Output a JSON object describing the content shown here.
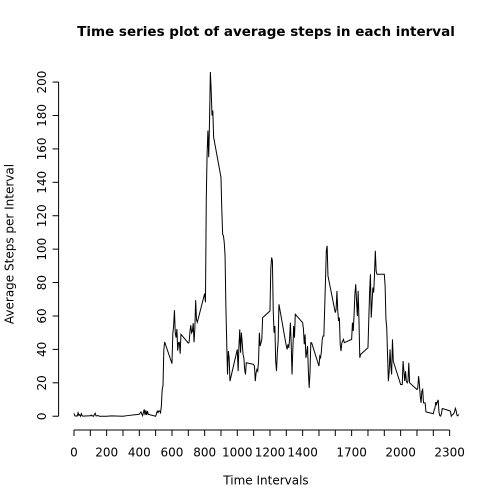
{
  "chart_data": {
    "type": "line",
    "title": "Time series plot of average steps in each interval",
    "xlabel": "Time Intervals",
    "ylabel": "Average Steps per Interval",
    "color": "#000000",
    "x": [
      0,
      5,
      10,
      15,
      20,
      25,
      30,
      35,
      40,
      45,
      50,
      55,
      100,
      105,
      110,
      115,
      120,
      125,
      130,
      135,
      140,
      145,
      150,
      155,
      200,
      230,
      300,
      330,
      400,
      410,
      420,
      430,
      435,
      440,
      445,
      450,
      455,
      500,
      505,
      510,
      515,
      520,
      525,
      530,
      535,
      540,
      545,
      550,
      555,
      600,
      605,
      610,
      615,
      620,
      625,
      630,
      635,
      640,
      645,
      650,
      655,
      700,
      705,
      710,
      715,
      720,
      725,
      730,
      735,
      740,
      745,
      750,
      755,
      800,
      805,
      810,
      815,
      820,
      825,
      830,
      835,
      840,
      845,
      850,
      855,
      900,
      905,
      910,
      915,
      920,
      925,
      930,
      935,
      940,
      945,
      950,
      955,
      1000,
      1005,
      1010,
      1015,
      1020,
      1025,
      1030,
      1035,
      1040,
      1045,
      1050,
      1055,
      1100,
      1105,
      1110,
      1115,
      1120,
      1125,
      1130,
      1135,
      1140,
      1145,
      1150,
      1155,
      1200,
      1205,
      1210,
      1215,
      1220,
      1225,
      1230,
      1235,
      1240,
      1245,
      1250,
      1255,
      1300,
      1305,
      1310,
      1315,
      1320,
      1325,
      1330,
      1335,
      1340,
      1345,
      1350,
      1355,
      1400,
      1405,
      1410,
      1415,
      1420,
      1425,
      1430,
      1435,
      1440,
      1445,
      1450,
      1455,
      1500,
      1505,
      1510,
      1515,
      1520,
      1525,
      1530,
      1535,
      1540,
      1545,
      1550,
      1555,
      1600,
      1605,
      1610,
      1615,
      1620,
      1625,
      1630,
      1635,
      1640,
      1645,
      1650,
      1655,
      1700,
      1705,
      1710,
      1715,
      1720,
      1725,
      1730,
      1735,
      1740,
      1745,
      1750,
      1755,
      1800,
      1805,
      1810,
      1815,
      1820,
      1825,
      1830,
      1835,
      1840,
      1845,
      1850,
      1855,
      1900,
      1905,
      1910,
      1915,
      1920,
      1925,
      1930,
      1935,
      1940,
      1945,
      1950,
      1955,
      2000,
      2005,
      2010,
      2015,
      2020,
      2025,
      2030,
      2035,
      2040,
      2045,
      2050,
      2055,
      2100,
      2105,
      2110,
      2115,
      2120,
      2125,
      2130,
      2135,
      2140,
      2145,
      2150,
      2155,
      2200,
      2205,
      2210,
      2215,
      2220,
      2225,
      2230,
      2235,
      2240,
      2245,
      2250,
      2255,
      2300,
      2305,
      2310,
      2315,
      2320,
      2325,
      2330,
      2335,
      2340,
      2345,
      2350,
      2355
    ],
    "values": [
      1.7,
      0.3,
      0.1,
      0.2,
      0.1,
      2.1,
      0.5,
      0.9,
      0,
      1.5,
      0.3,
      0.1,
      0.3,
      0.7,
      0.2,
      0.3,
      0,
      1.1,
      1.8,
      0.2,
      0.2,
      0.4,
      0.3,
      0,
      0,
      0.2,
      0,
      0.4,
      1.2,
      2.6,
      0.3,
      4.1,
      0.7,
      3.5,
      0.8,
      3.1,
      1.1,
      0,
      1.6,
      3,
      2.2,
      3.3,
      3,
      2.1,
      6.1,
      16,
      18.3,
      39.5,
      44.5,
      31.5,
      49.3,
      53.8,
      63.5,
      50,
      47.1,
      52.2,
      39.3,
      44,
      44.2,
      37.4,
      49,
      43.8,
      44.4,
      50.5,
      54.5,
      49.9,
      50.9,
      55.7,
      44.3,
      52.3,
      69.5,
      57.8,
      56.2,
      73.4,
      68.2,
      130,
      157,
      171,
      155,
      177,
      206,
      195,
      180,
      183,
      167,
      143,
      124,
      109,
      108,
      104,
      96,
      66,
      45,
      25,
      39,
      35,
      21,
      40,
      27,
      42,
      52,
      38,
      50,
      44,
      37,
      35,
      28,
      25,
      32,
      31,
      30,
      21,
      26,
      28,
      27,
      33,
      50,
      42,
      44,
      46,
      59,
      63,
      88,
      95,
      93,
      63,
      50,
      54,
      33,
      27,
      38,
      45,
      67,
      42,
      40,
      43,
      41,
      46,
      56,
      43,
      25,
      40,
      54,
      47,
      61,
      56,
      52,
      43,
      49,
      35,
      38,
      42,
      27,
      17,
      26,
      44,
      44,
      30,
      36,
      35,
      39,
      46,
      48,
      48,
      65,
      82,
      99,
      102,
      84,
      62,
      64,
      75,
      63,
      57,
      59,
      43,
      39,
      44,
      45,
      46,
      44,
      46,
      56,
      51,
      61,
      73,
      79,
      69,
      60,
      75,
      57,
      35,
      37,
      41,
      58,
      74,
      85,
      59,
      68,
      77,
      74,
      85,
      99,
      87,
      85,
      85,
      78,
      58,
      53,
      36,
      21,
      27,
      40,
      30,
      25,
      46,
      33,
      19,
      19,
      19,
      33,
      27,
      21,
      27,
      21,
      20,
      21,
      32,
      20,
      16,
      17,
      24,
      19,
      12,
      8,
      15,
      16,
      8,
      8,
      8,
      2.6,
      1.5,
      3.7,
      4.8,
      8.5,
      7.1,
      8.7,
      9.8,
      2.2,
      0.3,
      0.1,
      1.6,
      4.6,
      3.3,
      2.8,
      0,
      0.8,
      1,
      1.6,
      2.6,
      4.7,
      3.3,
      0.6,
      0.2,
      1.1
    ],
    "xlim": [
      -94.2,
      2449.2
    ],
    "ylim": [
      -8.24,
      214.4
    ],
    "xticks": [
      0,
      200,
      400,
      600,
      800,
      1000,
      1200,
      1400,
      1700,
      2000,
      2300
    ],
    "xminor_ticks": [
      100,
      300,
      500,
      700,
      900,
      1100,
      1300,
      1500,
      1600,
      1800,
      1900,
      2100,
      2200
    ],
    "yticks": [
      0,
      20,
      40,
      60,
      80,
      100,
      120,
      140,
      160,
      180,
      200
    ]
  }
}
